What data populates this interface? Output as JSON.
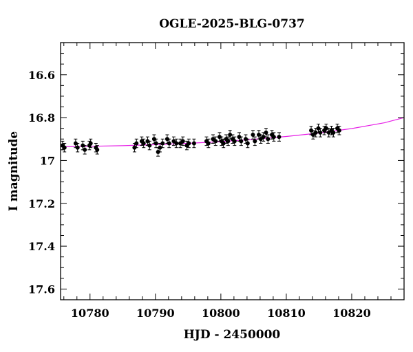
{
  "chart_data": {
    "type": "scatter",
    "title": "OGLE-2025-BLG-0737",
    "xlabel": "HJD - 2450000",
    "ylabel": "I magnitude",
    "xlim": [
      10775.5,
      10828
    ],
    "ylim": [
      17.65,
      16.45
    ],
    "y_inverted": true,
    "grid": false,
    "x_ticks": [
      10780,
      10790,
      10800,
      10810,
      10820
    ],
    "x_tick_labels": [
      "10780",
      "10790",
      "10800",
      "10810",
      "10820"
    ],
    "y_ticks": [
      16.6,
      16.8,
      17.0,
      17.2,
      17.4,
      17.6
    ],
    "y_tick_labels": [
      "16.6",
      "16.8",
      "17",
      "17.2",
      "17.4",
      "17.6"
    ],
    "model_color": "#e61ee6",
    "model": {
      "x": [
        10775.5,
        10780,
        10785,
        10790,
        10795,
        10800,
        10805,
        10810,
        10815,
        10820,
        10825,
        10828
      ],
      "y": [
        16.936,
        16.934,
        16.931,
        16.926,
        16.92,
        16.912,
        16.901,
        16.888,
        16.872,
        16.851,
        16.824,
        16.8
      ]
    },
    "series": [
      {
        "x": [
          10775.8,
          10776.1,
          10777.8,
          10778.1,
          10778.9,
          10779.2,
          10779.9,
          10780.1,
          10780.9,
          10781.1,
          10786.8,
          10787.1,
          10787.9,
          10788.2,
          10788.8,
          10789.1,
          10789.8,
          10790.1,
          10790.4,
          10790.7,
          10791.1,
          10791.8,
          10792.1,
          10792.8,
          10793.2,
          10793.8,
          10794.2,
          10794.8,
          10795.1,
          10795.9,
          10797.8,
          10798.1,
          10798.8,
          10799.2,
          10799.8,
          10800.1,
          10800.4,
          10800.8,
          10801.1,
          10801.4,
          10801.8,
          10802.1,
          10802.8,
          10803.1,
          10803.8,
          10804.1,
          10804.9,
          10805.2,
          10805.8,
          10806.1,
          10806.5,
          10806.9,
          10807.2,
          10807.8,
          10808.1,
          10808.9,
          10813.8,
          10814.1,
          10814.5,
          10814.9,
          10815.2,
          10815.8,
          10816.1,
          10816.5,
          10816.9,
          10817.2,
          10817.8,
          10818.1
        ],
        "y": [
          16.93,
          16.94,
          16.92,
          16.94,
          16.93,
          16.95,
          16.93,
          16.92,
          16.94,
          16.95,
          16.94,
          16.92,
          16.91,
          16.92,
          16.91,
          16.93,
          16.9,
          16.92,
          16.96,
          16.94,
          16.92,
          16.9,
          16.92,
          16.91,
          16.92,
          16.92,
          16.91,
          16.93,
          16.92,
          16.92,
          16.91,
          16.92,
          16.9,
          16.91,
          16.89,
          16.91,
          16.92,
          16.9,
          16.91,
          16.88,
          16.9,
          16.91,
          16.89,
          16.91,
          16.9,
          16.92,
          16.88,
          16.91,
          16.88,
          16.9,
          16.89,
          16.87,
          16.9,
          16.88,
          16.89,
          16.89,
          16.86,
          16.88,
          16.87,
          16.85,
          16.87,
          16.86,
          16.85,
          16.87,
          16.86,
          16.87,
          16.85,
          16.86
        ],
        "err": 0.02
      }
    ]
  }
}
